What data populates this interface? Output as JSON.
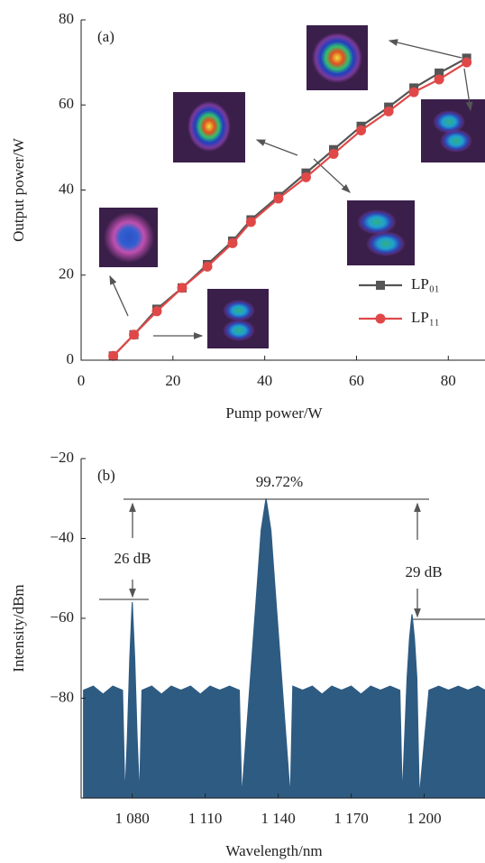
{
  "chart_data": [
    {
      "type": "line",
      "annotation": "(a)",
      "x_label": "Pump power/W",
      "y_label": "Output power/W",
      "x": [
        7,
        11.5,
        16.5,
        22,
        27.5,
        33,
        37,
        43,
        49,
        55,
        61,
        67,
        72.5,
        78,
        84
      ],
      "series": [
        {
          "name": "LP₀₁",
          "color": "#555555",
          "marker": "square",
          "values": [
            1,
            6,
            12,
            17,
            22.5,
            28,
            33,
            38.5,
            44,
            49.5,
            55,
            59.5,
            64,
            67.5,
            71
          ]
        },
        {
          "name": "LP₁₁",
          "color": "#e04848",
          "marker": "circle",
          "values": [
            1,
            6,
            11.5,
            17,
            22,
            27.5,
            32.5,
            38,
            43,
            48.5,
            54,
            58.5,
            63,
            66,
            70
          ]
        }
      ],
      "xlim": [
        0,
        88
      ],
      "ylim": [
        0,
        80
      ],
      "xticks": [
        0,
        20,
        40,
        60,
        80
      ],
      "yticks": [
        0,
        20,
        40,
        60,
        80
      ],
      "legend": "lower right",
      "grid": false
    },
    {
      "type": "area",
      "annotation": "(b)",
      "x_label": "Wavelength/nm",
      "y_label": "Intensity/dBm",
      "annotations": [
        "99.72%",
        "26 dB",
        "29 dB"
      ],
      "color": "#2e5b82",
      "x": [
        1060,
        1064,
        1068,
        1072,
        1076,
        1077,
        1078,
        1079,
        1080,
        1081,
        1082,
        1083,
        1084,
        1088,
        1092,
        1096,
        1100,
        1104,
        1108,
        1112,
        1116,
        1120,
        1124,
        1125,
        1128,
        1131,
        1133,
        1135,
        1137,
        1139,
        1142,
        1145,
        1146,
        1150,
        1154,
        1158,
        1162,
        1166,
        1170,
        1174,
        1178,
        1182,
        1186,
        1190,
        1191,
        1193,
        1194,
        1195,
        1196,
        1197,
        1198,
        1202,
        1206,
        1210,
        1214,
        1218,
        1222,
        1225
      ],
      "values": [
        -78,
        -77,
        -79,
        -77,
        -78,
        -105,
        -90,
        -70,
        -56,
        -70,
        -90,
        -105,
        -78,
        -77,
        -79,
        -77,
        -78,
        -77,
        -79,
        -77,
        -78,
        -77,
        -78,
        -105,
        -80,
        -55,
        -38,
        -30,
        -38,
        -55,
        -80,
        -105,
        -77,
        -78,
        -77,
        -79,
        -77,
        -78,
        -77,
        -79,
        -77,
        -78,
        -77,
        -78,
        -105,
        -75,
        -65,
        -59,
        -65,
        -75,
        -105,
        -78,
        -77,
        -78,
        -77,
        -78,
        -77,
        -78
      ],
      "xlim": [
        1059,
        1225
      ],
      "ylim": [
        -105,
        -20
      ],
      "xticks": [
        {
          "value": 1080,
          "label": "1 080"
        },
        {
          "value": 1110,
          "label": "1 110"
        },
        {
          "value": 1140,
          "label": "1 140"
        },
        {
          "value": 1170,
          "label": "1 170"
        },
        {
          "value": 1200,
          "label": "1 200"
        }
      ],
      "yticks": [
        {
          "value": -20,
          "label": "−20"
        },
        {
          "value": -40,
          "label": "−40"
        },
        {
          "value": -60,
          "label": "−60"
        },
        {
          "value": -80,
          "label": "−80"
        }
      ],
      "grid": false
    }
  ]
}
